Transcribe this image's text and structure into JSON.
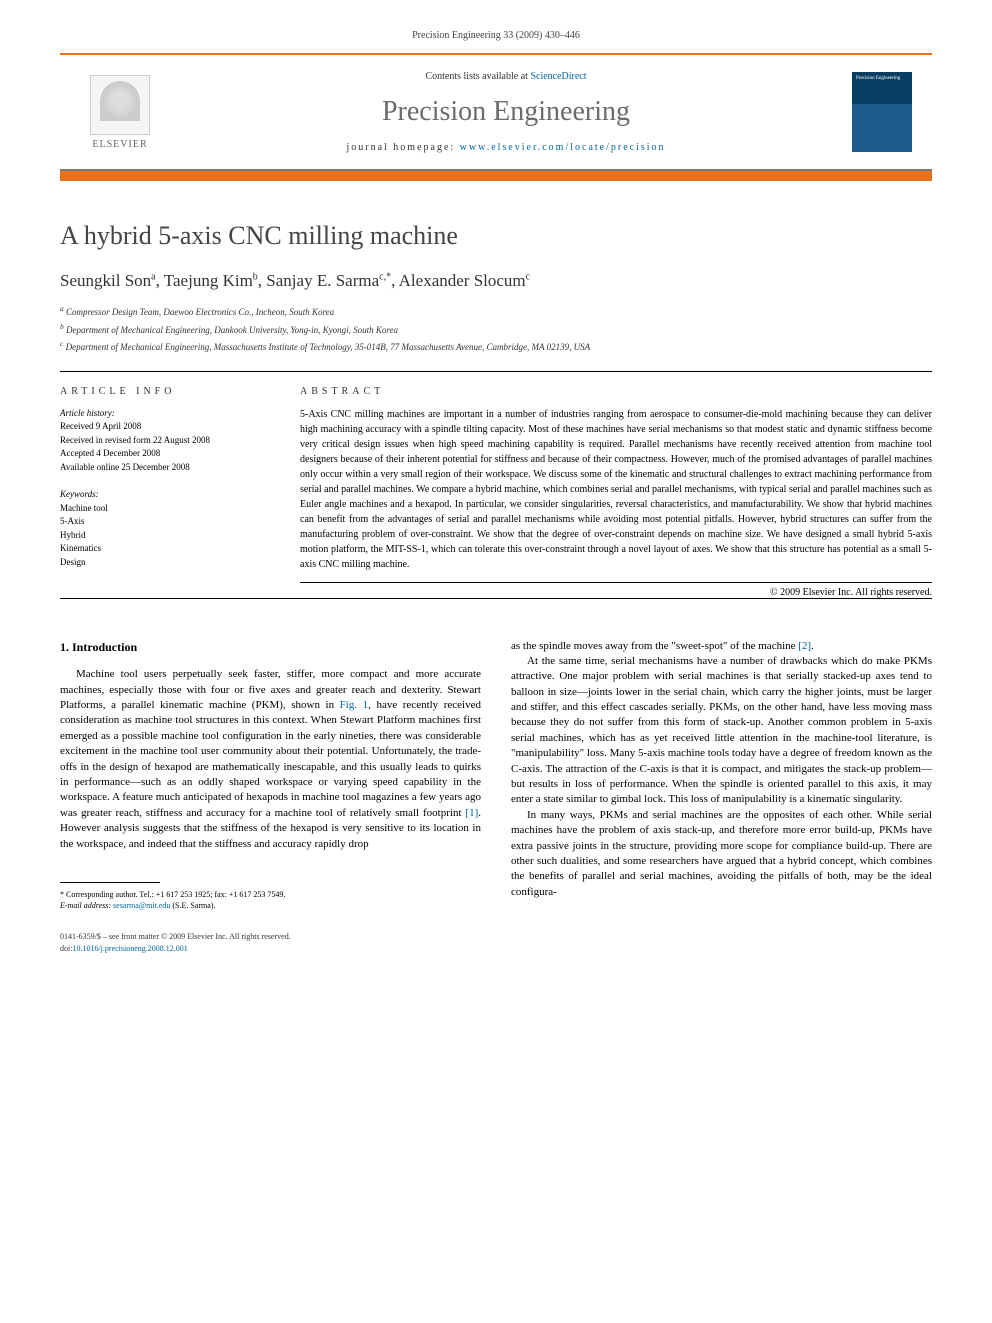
{
  "header": {
    "citation": "Precision Engineering 33 (2009) 430–446"
  },
  "banner": {
    "elsevier": "ELSEVIER",
    "contents_prefix": "Contents lists available at ",
    "contents_link": "ScienceDirect",
    "journal_name": "Precision Engineering",
    "homepage_prefix": "journal homepage: ",
    "homepage_url": "www.elsevier.com/locate/precision",
    "cover_text": "Precision Engineering"
  },
  "article": {
    "title": "A hybrid 5-axis CNC milling machine",
    "authors_html": "Seungkil Son<sup>a</sup>, Taejung Kim<sup>b</sup>, Sanjay E. Sarma<sup>c,*</sup>, Alexander Slocum<sup>c</sup>",
    "affiliations": [
      "a Compressor Design Team, Daewoo Electronics Co., Incheon, South Korea",
      "b Department of Mechanical Engineering, Dankook University, Yong-in, Kyongi, South Korea",
      "c Department of Mechanical Engineering, Massachusetts Institute of Technology, 35-014B, 77 Massachusetts Avenue, Cambridge, MA 02139, USA"
    ]
  },
  "info": {
    "heading": "ARTICLE INFO",
    "history_label": "Article history:",
    "history": [
      "Received 9 April 2008",
      "Received in revised form 22 August 2008",
      "Accepted 4 December 2008",
      "Available online 25 December 2008"
    ],
    "keywords_label": "Keywords:",
    "keywords": [
      "Machine tool",
      "5-Axis",
      "Hybrid",
      "Kinematics",
      "Design"
    ]
  },
  "abstract": {
    "heading": "ABSTRACT",
    "text": "5-Axis CNC milling machines are important in a number of industries ranging from aerospace to consumer-die-mold machining because they can deliver high machining accuracy with a spindle tilting capacity. Most of these machines have serial mechanisms so that modest static and dynamic stiffness become very critical design issues when high speed machining capability is required. Parallel mechanisms have recently received attention from machine tool designers because of their inherent potential for stiffness and because of their compactness. However, much of the promised advantages of parallel machines only occur within a very small region of their workspace. We discuss some of the kinematic and structural challenges to extract machining performance from serial and parallel machines. We compare a hybrid machine, which combines serial and parallel mechanisms, with typical serial and parallel machines such as Euler angle machines and a hexapod. In particular, we consider singularities, reversal characteristics, and manufacturability. We show that hybrid machines can benefit from the advantages of serial and parallel mechanisms while avoiding most potential pitfalls. However, hybrid structures can suffer from the manufacturing problem of over-constraint. We show that the degree of over-constraint depends on machine size. We have designed a small hybrid 5-axis motion platform, the MIT-SS-1, which can tolerate this over-constraint through a novel layout of axes. We show that this structure has potential as a small 5-axis CNC milling machine.",
    "copyright": "© 2009 Elsevier Inc. All rights reserved."
  },
  "body": {
    "section_heading": "1. Introduction",
    "col1_p1_pre": "Machine tool users perpetually seek faster, stiffer, more compact and more accurate machines, especially those with four or five axes and greater reach and dexterity. Stewart Platforms, a parallel kinematic machine (PKM), shown in ",
    "col1_p1_fig": "Fig. 1",
    "col1_p1_mid": ", have recently received consideration as machine tool structures in this context. When Stewart Platform machines first emerged as a possible machine tool configuration in the early nineties, there was considerable excitement in the machine tool user community about their potential. Unfortunately, the trade-offs in the design of hexapod are mathematically inescapable, and this usually leads to quirks in performance—such as an oddly shaped workspace or varying speed capability in the workspace. A feature much anticipated of hexapods in machine tool magazines a few years ago was greater reach, stiffness and accuracy for a machine tool of relatively small footprint ",
    "col1_p1_ref": "[1]",
    "col1_p1_end": ". However analysis suggests that the stiffness of the hexapod is very sensitive to its location in the workspace, and indeed that the stiffness and accuracy rapidly drop",
    "col2_p1_pre": "as the spindle moves away from the \"sweet-spot\" of the machine ",
    "col2_p1_ref": "[2]",
    "col2_p1_end": ".",
    "col2_p2": "At the same time, serial mechanisms have a number of drawbacks which do make PKMs attractive. One major problem with serial machines is that serially stacked-up axes tend to balloon in size—joints lower in the serial chain, which carry the higher joints, must be larger and stiffer, and this effect cascades serially. PKMs, on the other hand, have less moving mass because they do not suffer from this form of stack-up. Another common problem in 5-axis serial machines, which has as yet received little attention in the machine-tool literature, is \"manipulability\" loss. Many 5-axis machine tools today have a degree of freedom known as the C-axis. The attraction of the C-axis is that it is compact, and mitigates the stack-up problem—but results in loss of performance. When the spindle is oriented parallel to this axis, it may enter a state similar to gimbal lock. This loss of manipulability is a kinematic singularity.",
    "col2_p3": "In many ways, PKMs and serial machines are the opposites of each other. While serial machines have the problem of axis stack-up, and therefore more error build-up, PKMs have extra passive joints in the structure, providing more scope for compliance build-up. There are other such dualities, and some researchers have argued that a hybrid concept, which combines the benefits of parallel and serial machines, avoiding the pitfalls of both, may be the ideal configura-"
  },
  "footnote": {
    "corr": "* Corresponding author. Tel.: +1 617 253 1925; fax: +1 617 253 7549.",
    "email_label": "E-mail address: ",
    "email": "sesarma@mit.edu",
    "email_suffix": " (S.E. Sarma)."
  },
  "footer": {
    "line1": "0141-6359/$ – see front matter © 2009 Elsevier Inc. All rights reserved.",
    "doi_label": "doi:",
    "doi": "10.1016/j.precisioneng.2008.12.001"
  }
}
